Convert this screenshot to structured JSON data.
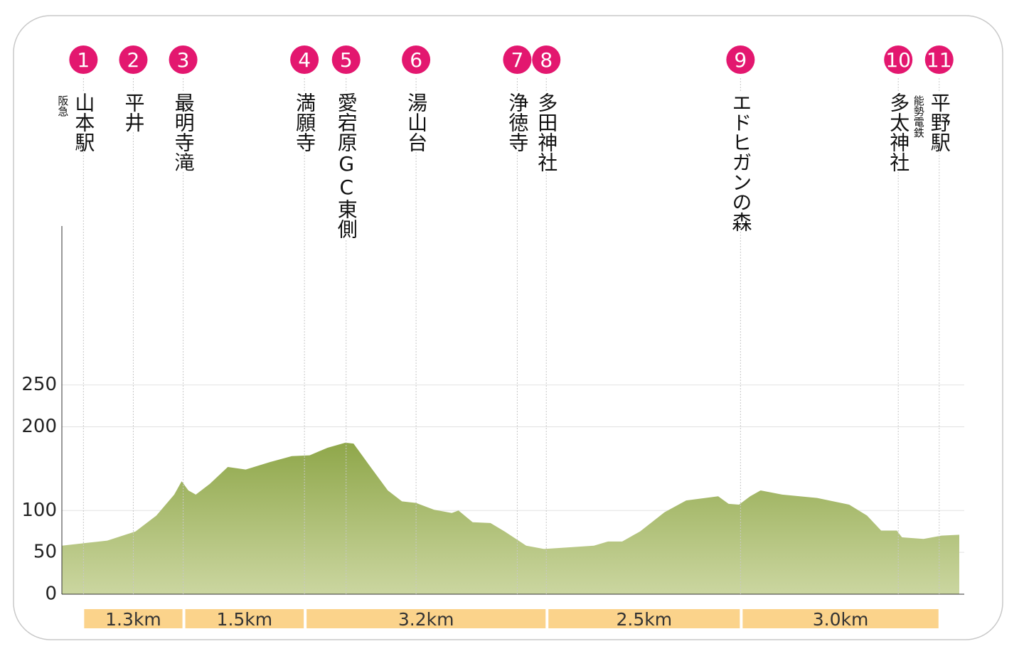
{
  "chart_data": {
    "type": "area",
    "color": "#8fa74a",
    "marker_color": "#e3176f",
    "segment_color": "#fbd38b",
    "grid": true,
    "xlim": [
      -0.29,
      11.77
    ],
    "ylim": [
      0,
      440
    ],
    "yticks": [
      0,
      50,
      100,
      200,
      250
    ],
    "x": [
      -0.29,
      0.32,
      0.7,
      0.98,
      1.22,
      1.32,
      1.41,
      1.51,
      1.7,
      1.94,
      2.18,
      2.51,
      2.8,
      3.04,
      3.28,
      3.52,
      3.63,
      3.85,
      4.09,
      4.28,
      4.47,
      4.71,
      4.95,
      5.04,
      5.23,
      5.47,
      5.66,
      5.95,
      6.19,
      6.52,
      6.86,
      7.05,
      7.24,
      7.48,
      7.81,
      8.1,
      8.53,
      8.67,
      8.81,
      8.96,
      9.1,
      9.39,
      9.86,
      10.29,
      10.53,
      10.72,
      10.93,
      11.0,
      11.29,
      11.53,
      11.77
    ],
    "values": [
      58,
      64,
      75,
      94,
      119,
      135,
      124,
      119,
      132,
      152,
      149,
      158,
      165,
      166,
      175,
      181,
      180,
      153,
      124,
      111,
      109,
      101,
      97,
      100,
      86,
      85,
      75,
      58,
      54,
      56,
      58,
      63,
      63,
      75,
      98,
      112,
      117,
      108,
      107,
      117,
      124,
      119,
      115,
      107,
      94,
      76,
      76,
      68,
      66,
      70,
      71
    ],
    "waypoints": [
      {
        "label": "1",
        "name": "山本駅",
        "note": "阪急",
        "x": 0
      },
      {
        "label": "2",
        "name": "平井",
        "x": 0.67
      },
      {
        "label": "3",
        "name": "最明寺滝",
        "x": 1.34
      },
      {
        "label": "4",
        "name": "満願寺",
        "x": 2.97
      },
      {
        "label": "5",
        "name": "愛宕原GC東側",
        "x": 3.53
      },
      {
        "label": "6",
        "name": "湯山台",
        "x": 4.47
      },
      {
        "label": "7",
        "name": "浄徳寺",
        "x": 5.83
      },
      {
        "label": "8",
        "name": "多田神社",
        "x": 6.22
      },
      {
        "label": "9",
        "name": "エドヒガンの森",
        "x": 8.83
      },
      {
        "label": "10",
        "name": "多太神社",
        "x": 10.95
      },
      {
        "label": "11",
        "name": "平野駅",
        "note": "能勢電鉄",
        "x": 11.5
      }
    ],
    "segments": [
      "1.3km",
      "1.5km",
      "3.2km",
      "2.5km",
      "3.0km"
    ]
  }
}
